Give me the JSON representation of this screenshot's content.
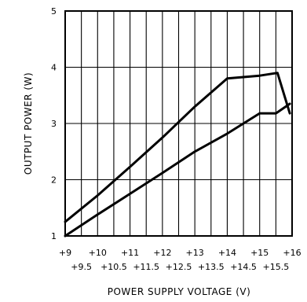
{
  "chart_data": {
    "type": "line",
    "title": "",
    "xlabel": "POWER SUPPLY VOLTAGE (V)",
    "ylabel": "OUTPUT POWER (W)",
    "xlim": [
      9,
      16
    ],
    "ylim": [
      1,
      5
    ],
    "grid": true,
    "legend": "none",
    "x_ticks": [
      9,
      9.5,
      10,
      10.5,
      11,
      11.5,
      12,
      12.5,
      13,
      13.5,
      14,
      14.5,
      15,
      15.5,
      16
    ],
    "x_tick_labels_upper": [
      "+9",
      "+10",
      "+11",
      "+12",
      "+13",
      "+14",
      "+15",
      "+16"
    ],
    "x_tick_labels_lower": [
      "+9.5",
      "+10.5",
      "+11.5",
      "+12.5",
      "+13.5",
      "+14.5",
      "+15.5"
    ],
    "y_ticks": [
      1,
      2,
      3,
      4,
      5
    ],
    "y_tick_labels": [
      "1",
      "2",
      "3",
      "4",
      "5"
    ],
    "series": [
      {
        "x": [
          9,
          10,
          11,
          12,
          13,
          14,
          15,
          15.55,
          15.93
        ],
        "y": [
          1.25,
          1.72,
          2.23,
          2.75,
          3.3,
          3.8,
          3.85,
          3.9,
          3.18
        ],
        "color": "#000000"
      },
      {
        "x": [
          9,
          10,
          11,
          12,
          13,
          14,
          15,
          15.5,
          15.93
        ],
        "y": [
          1.0,
          1.38,
          1.75,
          2.12,
          2.5,
          2.82,
          3.18,
          3.18,
          3.35
        ],
        "color": "#000000"
      }
    ]
  }
}
